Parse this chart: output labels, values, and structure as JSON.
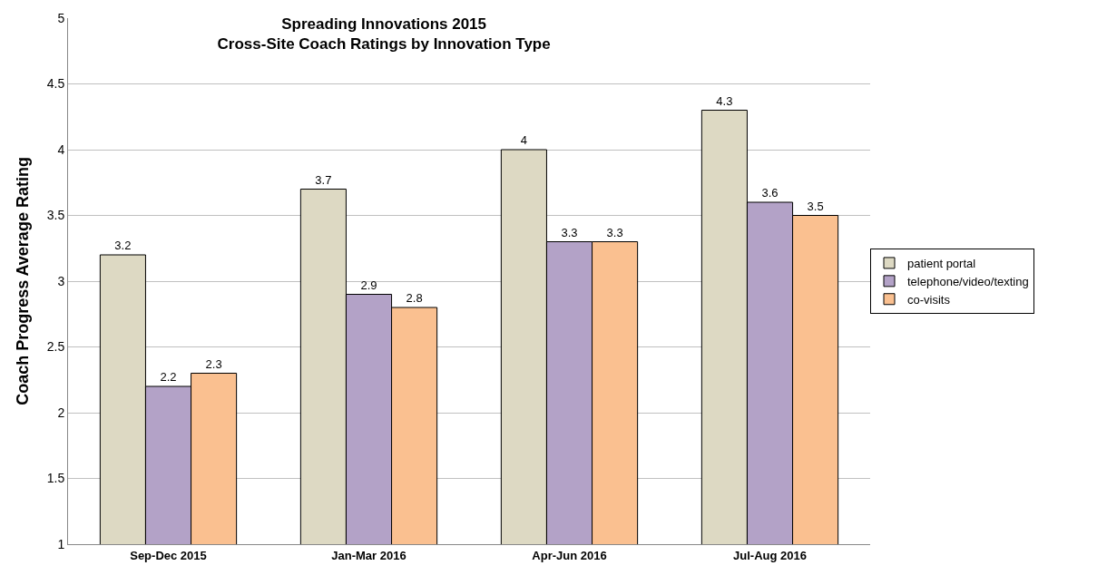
{
  "chart_data": {
    "type": "bar",
    "title": "Spreading Innovations 2015\nCross-Site Coach Ratings by Innovation Type",
    "ylabel": "Coach Progress Average Rating",
    "categories": [
      "Sep-Dec 2015",
      "Jan-Mar 2016",
      "Apr-Jun 2016",
      "Jul-Aug 2016"
    ],
    "series": [
      {
        "name": "patient portal",
        "color": "#ddd9c3",
        "values": [
          3.2,
          3.7,
          4,
          4.3
        ]
      },
      {
        "name": "telephone/video/texting",
        "color": "#b3a2c7",
        "values": [
          2.2,
          2.9,
          3.3,
          3.6
        ]
      },
      {
        "name": "co-visits",
        "color": "#fac090",
        "values": [
          2.3,
          2.8,
          3.3,
          3.5
        ]
      }
    ],
    "ylim": [
      1,
      5
    ],
    "yticks": [
      1,
      1.5,
      2,
      2.5,
      3,
      3.5,
      4,
      4.5,
      5
    ],
    "grid": "y",
    "legend": "right",
    "data_labels": true
  }
}
